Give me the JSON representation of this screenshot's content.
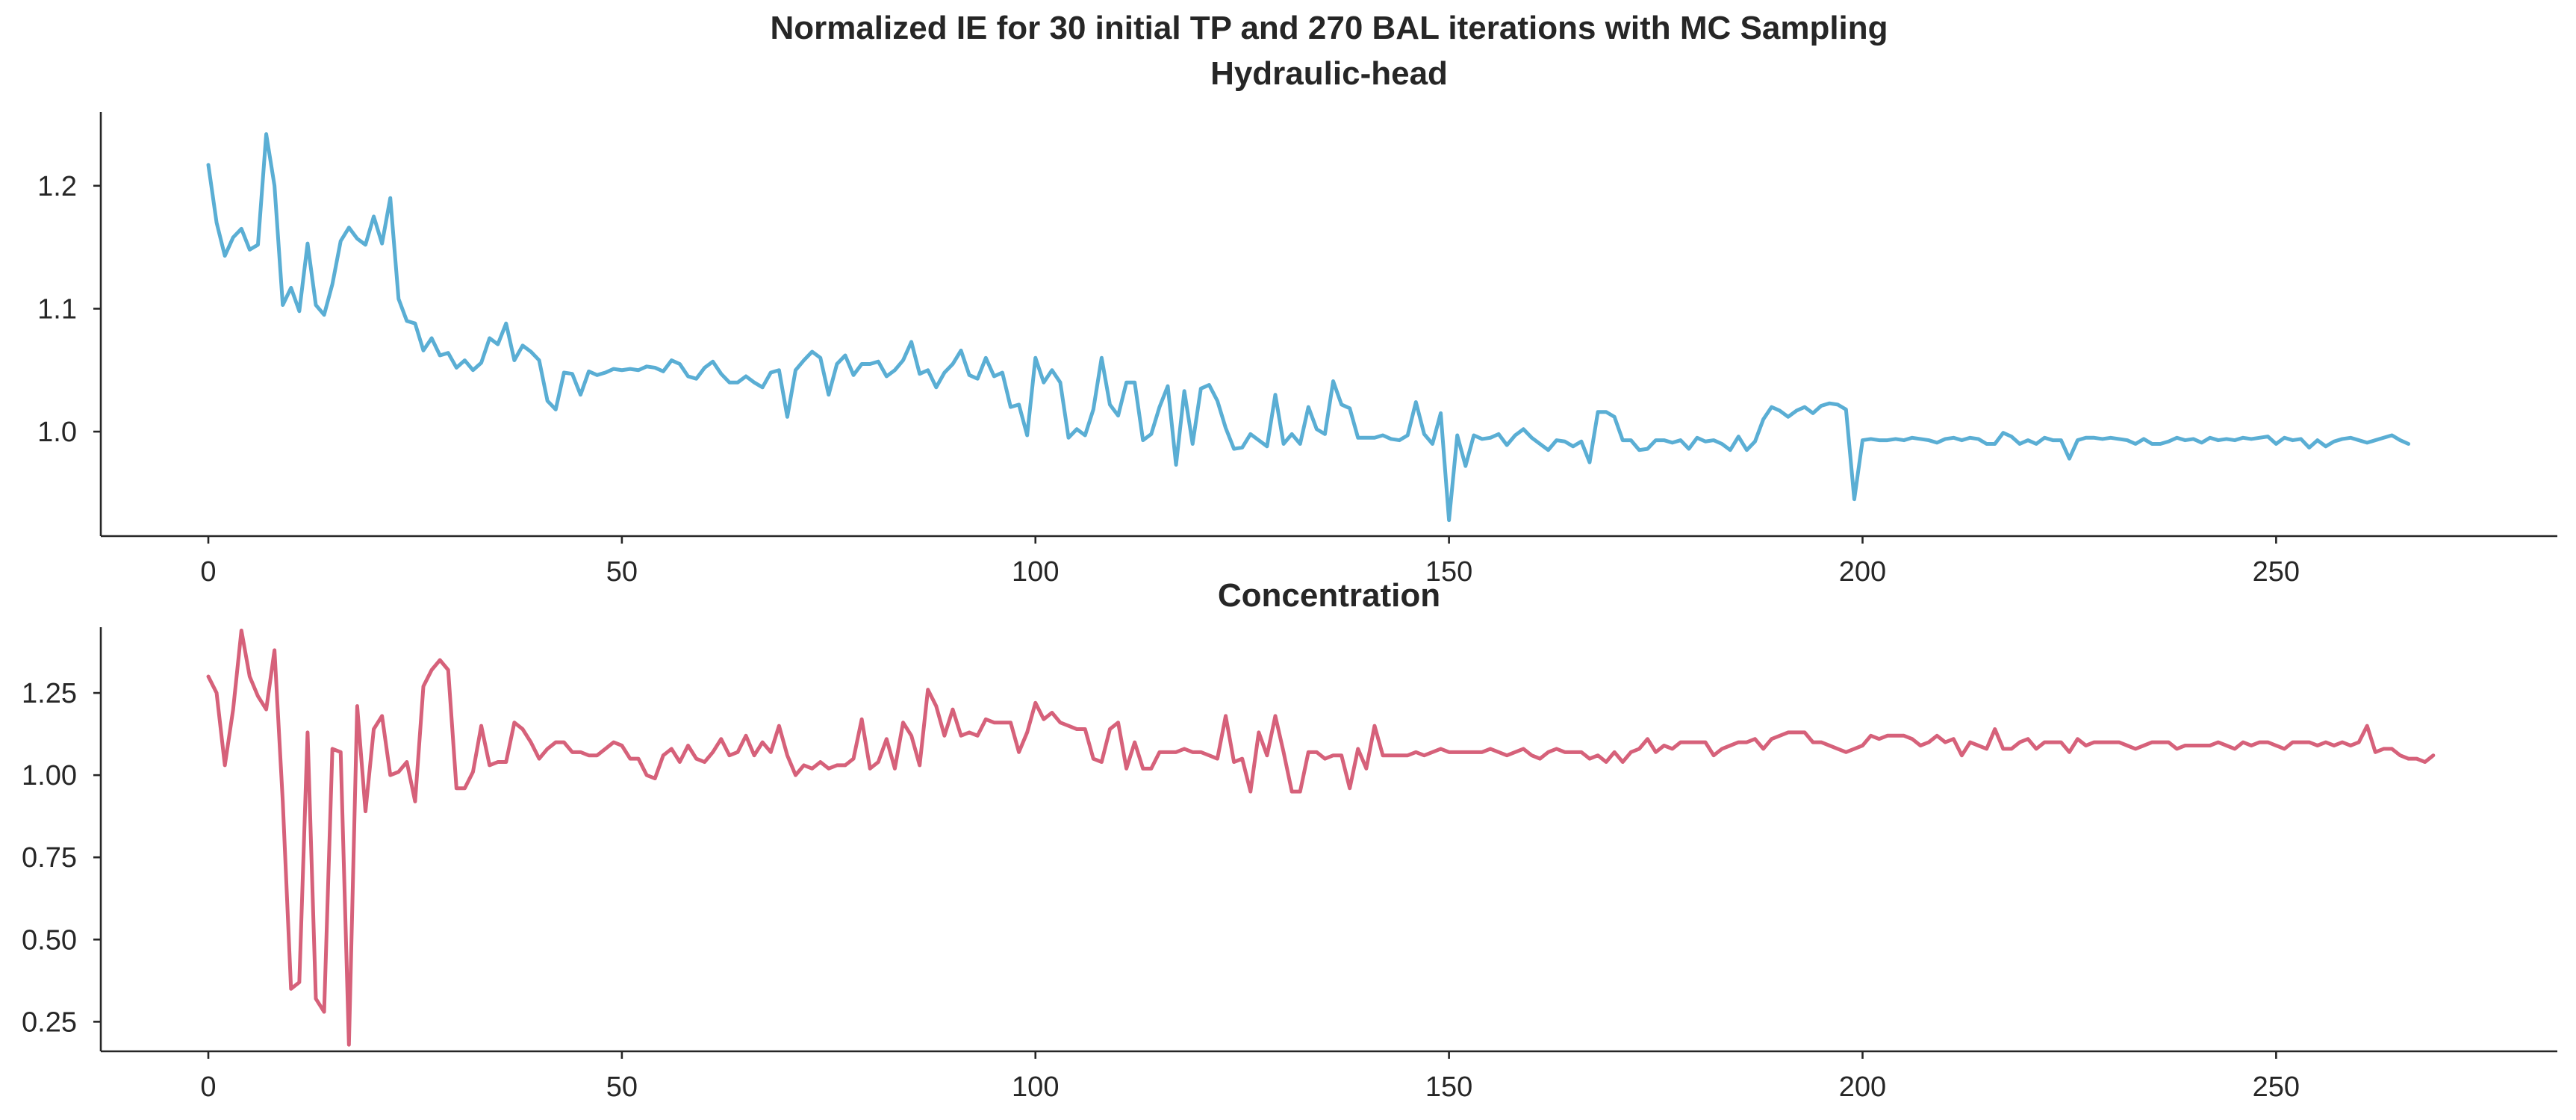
{
  "figure": {
    "suptitle": "Normalized IE for 30 initial TP and 270 BAL iterations with MC Sampling"
  },
  "chart_data": [
    {
      "type": "line",
      "title": "Hydraulic-head",
      "xlabel": "",
      "ylabel": "",
      "xlim": [
        -13,
        284
      ],
      "ylim": [
        0.915,
        1.26
      ],
      "xticks": [
        0,
        50,
        100,
        150,
        200,
        250
      ],
      "xtick_labels": [
        "0",
        "50",
        "100",
        "150",
        "200",
        "250"
      ],
      "yticks": [
        1.0,
        1.1,
        1.2
      ],
      "ytick_labels": [
        "1.0",
        "1.1",
        "1.2"
      ],
      "grid": false,
      "series": [
        {
          "name": "Hydraulic-head",
          "color": "#5aaed4",
          "values": [
            1.217,
            1.17,
            1.143,
            1.158,
            1.165,
            1.148,
            1.152,
            1.242,
            1.2,
            1.103,
            1.117,
            1.098,
            1.153,
            1.103,
            1.095,
            1.12,
            1.155,
            1.166,
            1.157,
            1.152,
            1.175,
            1.153,
            1.19,
            1.108,
            1.09,
            1.088,
            1.066,
            1.076,
            1.062,
            1.064,
            1.052,
            1.058,
            1.05,
            1.056,
            1.076,
            1.071,
            1.088,
            1.058,
            1.07,
            1.065,
            1.058,
            1.025,
            1.018,
            1.048,
            1.047,
            1.03,
            1.049,
            1.046,
            1.048,
            1.051,
            1.05,
            1.051,
            1.05,
            1.053,
            1.052,
            1.049,
            1.058,
            1.055,
            1.045,
            1.043,
            1.052,
            1.057,
            1.047,
            1.04,
            1.04,
            1.045,
            1.04,
            1.036,
            1.048,
            1.05,
            1.012,
            1.05,
            1.058,
            1.065,
            1.06,
            1.03,
            1.055,
            1.062,
            1.046,
            1.055,
            1.055,
            1.057,
            1.045,
            1.05,
            1.058,
            1.073,
            1.047,
            1.05,
            1.036,
            1.048,
            1.055,
            1.066,
            1.046,
            1.043,
            1.06,
            1.045,
            1.048,
            1.02,
            1.022,
            0.997,
            1.06,
            1.04,
            1.05,
            1.04,
            0.995,
            1.002,
            0.997,
            1.018,
            1.06,
            1.022,
            1.013,
            1.04,
            1.04,
            0.993,
            0.998,
            1.02,
            1.037,
            0.973,
            1.033,
            0.99,
            1.035,
            1.038,
            1.025,
            1.003,
            0.986,
            0.987,
            0.998,
            0.993,
            0.988,
            1.03,
            0.99,
            0.998,
            0.99,
            1.02,
            1.002,
            0.998,
            1.041,
            1.022,
            1.019,
            0.995,
            0.995,
            0.995,
            0.997,
            0.994,
            0.993,
            0.997,
            1.024,
            0.998,
            0.99,
            1.015,
            0.928,
            0.997,
            0.972,
            0.997,
            0.994,
            0.995,
            0.998,
            0.989,
            0.997,
            1.002,
            0.995,
            0.99,
            0.985,
            0.993,
            0.992,
            0.988,
            0.992,
            0.975,
            1.016,
            1.016,
            1.012,
            0.993,
            0.993,
            0.985,
            0.986,
            0.993,
            0.993,
            0.991,
            0.993,
            0.986,
            0.995,
            0.992,
            0.993,
            0.99,
            0.985,
            0.996,
            0.985,
            0.992,
            1.01,
            1.02,
            1.017,
            1.012,
            1.017,
            1.02,
            1.015,
            1.021,
            1.023,
            1.022,
            1.018,
            0.945,
            0.993,
            0.994,
            0.993,
            0.993,
            0.994,
            0.993,
            0.995,
            0.994,
            0.993,
            0.991,
            0.994,
            0.995,
            0.993,
            0.995,
            0.994,
            0.99,
            0.99,
            0.999,
            0.996,
            0.99,
            0.993,
            0.99,
            0.995,
            0.993,
            0.993,
            0.978,
            0.993,
            0.995,
            0.995,
            0.994,
            0.995,
            0.994,
            0.993,
            0.99,
            0.994,
            0.99,
            0.99,
            0.992,
            0.995,
            0.993,
            0.994,
            0.991,
            0.995,
            0.993,
            0.994,
            0.993,
            0.995,
            0.994,
            0.995,
            0.996,
            0.99,
            0.995,
            0.993,
            0.994,
            0.987,
            0.993,
            0.988,
            0.992,
            0.994,
            0.995,
            0.993,
            0.991,
            0.993,
            0.995,
            0.997,
            0.993,
            0.99
          ]
        }
      ]
    },
    {
      "type": "line",
      "title": "Concentration",
      "xlabel": "",
      "ylabel": "",
      "xlim": [
        -13,
        284
      ],
      "ylim": [
        0.16,
        1.45
      ],
      "xticks": [
        0,
        50,
        100,
        150,
        200,
        250
      ],
      "xtick_labels": [
        "0",
        "50",
        "100",
        "150",
        "200",
        "250"
      ],
      "yticks": [
        0.25,
        0.5,
        0.75,
        1.0,
        1.25
      ],
      "ytick_labels": [
        "0.25",
        "0.50",
        "0.75",
        "1.00",
        "1.25"
      ],
      "grid": false,
      "series": [
        {
          "name": "Concentration",
          "color": "#d6617a",
          "values": [
            1.3,
            1.25,
            1.03,
            1.2,
            1.44,
            1.3,
            1.24,
            1.2,
            1.38,
            0.92,
            0.35,
            0.37,
            1.13,
            0.32,
            0.28,
            1.08,
            1.07,
            0.18,
            1.21,
            0.89,
            1.14,
            1.18,
            1.0,
            1.01,
            1.04,
            0.92,
            1.27,
            1.32,
            1.35,
            1.32,
            0.96,
            0.96,
            1.01,
            1.15,
            1.03,
            1.04,
            1.04,
            1.16,
            1.14,
            1.1,
            1.05,
            1.08,
            1.1,
            1.1,
            1.07,
            1.07,
            1.06,
            1.06,
            1.08,
            1.1,
            1.09,
            1.05,
            1.05,
            1.0,
            0.99,
            1.06,
            1.08,
            1.04,
            1.09,
            1.05,
            1.04,
            1.07,
            1.11,
            1.06,
            1.07,
            1.12,
            1.06,
            1.1,
            1.07,
            1.15,
            1.06,
            1.0,
            1.03,
            1.02,
            1.04,
            1.02,
            1.03,
            1.03,
            1.05,
            1.17,
            1.02,
            1.04,
            1.11,
            1.02,
            1.16,
            1.12,
            1.03,
            1.26,
            1.21,
            1.12,
            1.2,
            1.12,
            1.13,
            1.12,
            1.17,
            1.16,
            1.16,
            1.16,
            1.07,
            1.13,
            1.22,
            1.17,
            1.19,
            1.16,
            1.15,
            1.14,
            1.14,
            1.05,
            1.04,
            1.14,
            1.16,
            1.02,
            1.1,
            1.02,
            1.02,
            1.07,
            1.07,
            1.07,
            1.08,
            1.07,
            1.07,
            1.06,
            1.05,
            1.18,
            1.04,
            1.05,
            0.95,
            1.13,
            1.06,
            1.18,
            1.07,
            0.95,
            0.95,
            1.07,
            1.07,
            1.05,
            1.06,
            1.06,
            0.96,
            1.08,
            1.02,
            1.15,
            1.06,
            1.06,
            1.06,
            1.06,
            1.07,
            1.06,
            1.07,
            1.08,
            1.07,
            1.07,
            1.07,
            1.07,
            1.07,
            1.08,
            1.07,
            1.06,
            1.07,
            1.08,
            1.06,
            1.05,
            1.07,
            1.08,
            1.07,
            1.07,
            1.07,
            1.05,
            1.06,
            1.04,
            1.07,
            1.04,
            1.07,
            1.08,
            1.11,
            1.07,
            1.09,
            1.08,
            1.1,
            1.1,
            1.1,
            1.1,
            1.06,
            1.08,
            1.09,
            1.1,
            1.1,
            1.11,
            1.08,
            1.11,
            1.12,
            1.13,
            1.13,
            1.13,
            1.1,
            1.1,
            1.09,
            1.08,
            1.07,
            1.08,
            1.09,
            1.12,
            1.11,
            1.12,
            1.12,
            1.12,
            1.11,
            1.09,
            1.1,
            1.12,
            1.1,
            1.11,
            1.06,
            1.1,
            1.09,
            1.08,
            1.14,
            1.08,
            1.08,
            1.1,
            1.11,
            1.08,
            1.1,
            1.1,
            1.1,
            1.07,
            1.11,
            1.09,
            1.1,
            1.1,
            1.1,
            1.1,
            1.09,
            1.08,
            1.09,
            1.1,
            1.1,
            1.1,
            1.08,
            1.09,
            1.09,
            1.09,
            1.09,
            1.1,
            1.09,
            1.08,
            1.1,
            1.09,
            1.1,
            1.1,
            1.09,
            1.08,
            1.1,
            1.1,
            1.1,
            1.09,
            1.1,
            1.09,
            1.1,
            1.09,
            1.1,
            1.15,
            1.07,
            1.08,
            1.08,
            1.06,
            1.05,
            1.05,
            1.04,
            1.06
          ]
        }
      ]
    }
  ]
}
